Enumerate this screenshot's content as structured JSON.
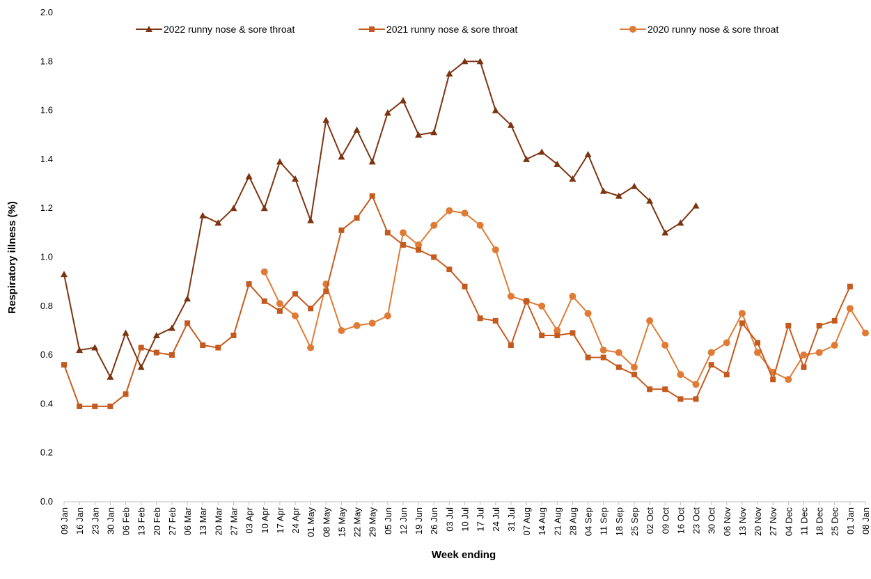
{
  "chart_data": {
    "type": "line",
    "title": "",
    "xlabel": "Week ending",
    "ylabel": "Respiratory illness (%)",
    "ylim": [
      0,
      2.0
    ],
    "yticks": [
      "0.0",
      "0.2",
      "0.4",
      "0.6",
      "0.8",
      "1.0",
      "1.2",
      "1.4",
      "1.6",
      "1.8",
      "2.0"
    ],
    "grid": false,
    "legend_position": "top",
    "categories": [
      "09 Jan",
      "16 Jan",
      "23 Jan",
      "30 Jan",
      "06 Feb",
      "13 Feb",
      "20 Feb",
      "27 Feb",
      "06 Mar",
      "13 Mar",
      "20 Mar",
      "27 Mar",
      "03 Apr",
      "10 Apr",
      "17 Apr",
      "24 Apr",
      "01 May",
      "08 May",
      "15 May",
      "22 May",
      "29 May",
      "05 Jun",
      "12 Jun",
      "19 Jun",
      "26 Jun",
      "03 Jul",
      "10 Jul",
      "17 Jul",
      "24 Jul",
      "31 Jul",
      "07 Aug",
      "14 Aug",
      "21 Aug",
      "28 Aug",
      "04 Sep",
      "11 Sep",
      "18 Sep",
      "25 Sep",
      "02 Oct",
      "09 Oct",
      "16 Oct",
      "23 Oct",
      "30 Oct",
      "06 Nov",
      "13 Nov",
      "20 Nov",
      "27 Nov",
      "04 Dec",
      "11 Dec",
      "18 Dec",
      "25 Dec",
      "01 Jan",
      "08 Jan"
    ],
    "series": [
      {
        "name": "2022 runny nose & sore throat",
        "color": "#7b3410",
        "marker": "triangle",
        "values": [
          0.93,
          0.62,
          0.63,
          0.51,
          0.69,
          0.55,
          0.68,
          0.71,
          0.83,
          1.17,
          1.14,
          1.2,
          1.33,
          1.2,
          1.39,
          1.32,
          1.15,
          1.56,
          1.41,
          1.52,
          1.39,
          1.59,
          1.64,
          1.5,
          1.51,
          1.75,
          1.8,
          1.8,
          1.6,
          1.54,
          1.4,
          1.43,
          1.38,
          1.32,
          1.42,
          1.27,
          1.25,
          1.29,
          1.23,
          1.1,
          1.14,
          1.21,
          null,
          null,
          null,
          null,
          null,
          null,
          null,
          null,
          null,
          null,
          null
        ]
      },
      {
        "name": "2021 runny nose & sore throat",
        "color": "#c55a1f",
        "marker": "square",
        "values": [
          0.56,
          0.39,
          0.39,
          0.39,
          0.44,
          0.63,
          0.61,
          0.6,
          0.73,
          0.64,
          0.63,
          0.68,
          0.89,
          0.82,
          0.78,
          0.85,
          0.79,
          0.86,
          1.11,
          1.16,
          1.25,
          1.1,
          1.05,
          1.03,
          1.0,
          0.95,
          0.88,
          0.75,
          0.74,
          0.64,
          0.82,
          0.68,
          0.68,
          0.69,
          0.59,
          0.59,
          0.55,
          0.52,
          0.46,
          0.46,
          0.42,
          0.42,
          0.56,
          0.52,
          0.73,
          0.65,
          0.5,
          0.72,
          0.55,
          0.72,
          0.74,
          0.88,
          null
        ]
      },
      {
        "name": "2020 runny nose & sore throat",
        "color": "#e07b35",
        "marker": "circle",
        "values": [
          null,
          null,
          null,
          null,
          null,
          null,
          null,
          null,
          null,
          null,
          null,
          null,
          null,
          0.94,
          0.81,
          0.76,
          0.63,
          0.89,
          0.7,
          0.72,
          0.73,
          0.76,
          1.1,
          1.05,
          1.13,
          1.19,
          1.18,
          1.13,
          1.03,
          0.84,
          0.82,
          0.8,
          0.7,
          0.84,
          0.77,
          0.62,
          0.61,
          0.55,
          0.74,
          0.64,
          0.52,
          0.48,
          0.61,
          0.65,
          0.77,
          0.61,
          0.53,
          0.5,
          0.6,
          0.61,
          0.64,
          0.79,
          0.69
        ]
      }
    ]
  }
}
